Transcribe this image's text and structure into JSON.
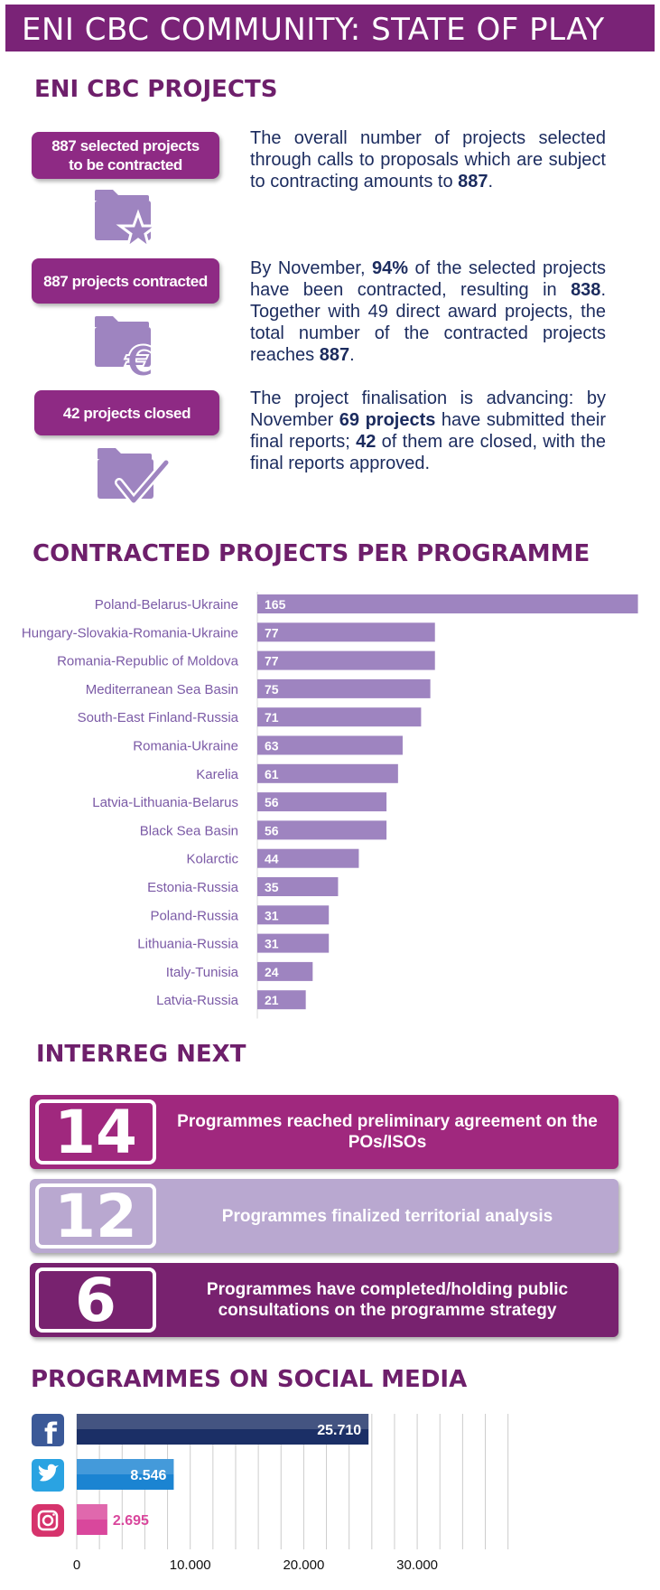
{
  "title": "ENI CBC COMMUNITY: STATE OF PLAY",
  "projects_section": {
    "heading": "ENI CBC PROJECTS",
    "cards": [
      {
        "label_line1": "887 selected projects",
        "label_line2": "to be contracted",
        "icon": "folder-star-icon"
      },
      {
        "label_line1": "887 projects contracted",
        "label_line2": "",
        "icon": "folder-euro-icon"
      },
      {
        "label_line1": "42 projects closed",
        "label_line2": "",
        "icon": "folder-check-icon"
      }
    ],
    "paragraphs": [
      {
        "parts": [
          "The overall number of projects selected through calls to proposals which are subject to contracting amounts to ",
          "887",
          "."
        ]
      },
      {
        "parts": [
          "By November, ",
          "94%",
          " of the selected projects have been contracted, resulting in ",
          "838",
          ". Together with 49 direct award projects, the total number of the contracted projects reaches ",
          "887",
          "."
        ]
      },
      {
        "parts": [
          "The project finalisation is advancing: by November ",
          "69 projects",
          " have submitted their final reports; ",
          "42",
          " of them are closed, with the final reports approved."
        ]
      }
    ]
  },
  "contracted_section": {
    "heading": "CONTRACTED PROJECTS PER PROGRAMME"
  },
  "interreg_section": {
    "heading": "INTERREG NEXT",
    "items": [
      {
        "number": "14",
        "text": "Programmes reached preliminary agreement on the POs/ISOs",
        "color": "#a0287e"
      },
      {
        "number": "12",
        "text": "Programmes finalized territorial analysis",
        "color": "#b9a8d0"
      },
      {
        "number": "6",
        "text": "Programmes have completed/holding public consultations on the programme strategy",
        "color": "#78226f"
      }
    ]
  },
  "social_section": {
    "heading": "PROGRAMMES ON SOCIAL MEDIA"
  },
  "chart_data": [
    {
      "type": "bar",
      "orientation": "horizontal",
      "categories": [
        "Poland-Belarus-Ukraine",
        "Hungary-Slovakia-Romania-Ukraine",
        "Romania-Republic of Moldova",
        "Mediterranean Sea Basin",
        "South-East Finland-Russia",
        "Romania-Ukraine",
        "Karelia",
        "Latvia-Lithuania-Belarus",
        "Black Sea Basin",
        "Kolarctic",
        "Estonia-Russia",
        "Poland-Russia",
        "Lithuania-Russia",
        "Italy-Tunisia",
        "Latvia-Russia"
      ],
      "values": [
        165,
        77,
        77,
        75,
        71,
        63,
        61,
        56,
        56,
        44,
        35,
        31,
        31,
        24,
        21
      ],
      "value_labels": [
        "165",
        "77",
        "77",
        "75",
        "71",
        "63",
        "61",
        "56",
        "56",
        "44",
        "35",
        "31",
        "31",
        "24",
        "21"
      ],
      "bar_color": "#9e84c0",
      "grid": false
    },
    {
      "type": "bar",
      "orientation": "horizontal",
      "categories": [
        "facebook-icon",
        "twitter-icon",
        "instagram-icon"
      ],
      "values": [
        25710,
        8546,
        2695
      ],
      "value_labels": [
        "25.710",
        "8.546",
        "2.695"
      ],
      "colors": [
        "#1b2f66",
        "#1b84d2",
        "#d9479c"
      ],
      "xlim": [
        0,
        38000
      ],
      "xticks": [
        0,
        10000,
        20000,
        30000
      ],
      "xtick_labels": [
        "0",
        "10.000",
        "20.000",
        "30.000"
      ],
      "grid": true
    }
  ]
}
